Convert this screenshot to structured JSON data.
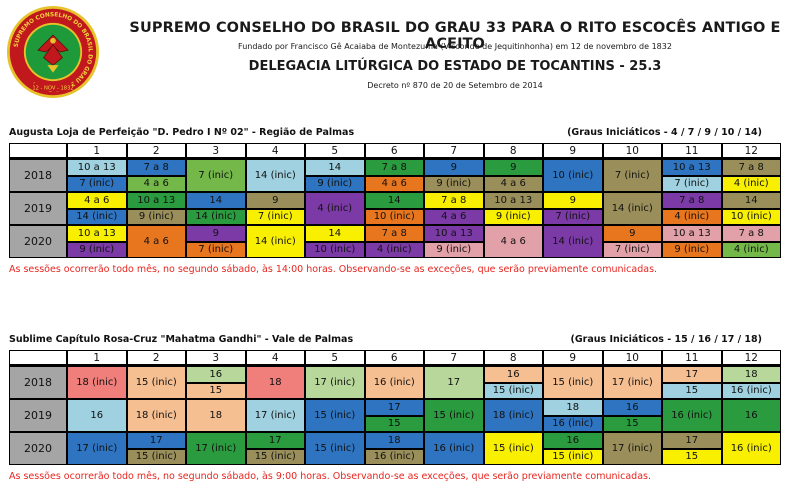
{
  "seal": {
    "ring_text": "SUPREMO CONSELHO DO BRASIL DO GRAU 33 P.R.E.A.A.",
    "date_text": "12 - NOV - 1832",
    "colors": {
      "outer": "#e8c22a",
      "ring": "#c0181c",
      "center": "#1f9a3a"
    }
  },
  "header": {
    "title": "SUPREMO CONSELHO DO BRASIL DO GRAU 33 PARA O RITO ESCOCÊS ANTIGO E ACEITO",
    "founded": "Fundado por Francisco Gê Acaiaba de Montezuma (Visconde de Jequitinhonha) em 12 de novembro de 1832",
    "delegacia": "DELEGACIA LITÚRGICA DO ESTADO DE TOCANTINS - 25.3",
    "decree": "Decreto nº 870 de 20 de Setembro de 2014"
  },
  "sections": [
    {
      "title": "Augusta Loja de Perfeição \"D. Pedro I Nº 02\" - Região de Palmas",
      "graus": "(Graus Iniciáticos - 4 / 7 / 9 / 10 / 14)",
      "note": "As sessões ocorrerão todo mês, no segundo sábado, às 14:00 horas. Observando-se as exceções, que serão previamente comunicadas.",
      "months": [
        "1",
        "2",
        "3",
        "4",
        "5",
        "6",
        "7",
        "8",
        "9",
        "10",
        "11",
        "12"
      ],
      "rows": [
        {
          "year": "2018",
          "cells": [
            [
              [
                "10 a 13",
                "#9fd1e0"
              ],
              [
                "7 (inic)",
                "#2e74c0"
              ]
            ],
            [
              [
                "7 a 8",
                "#2e74c0"
              ],
              [
                "4 a 6",
                "#74b84a"
              ]
            ],
            [
              [
                "7 (inic)",
                "#74b84a"
              ]
            ],
            [
              [
                "14 (inic)",
                "#9fd1e0"
              ]
            ],
            [
              [
                "14",
                "#9fd1e0"
              ],
              [
                "9 (inic)",
                "#2e74c0"
              ]
            ],
            [
              [
                "7 a 8",
                "#2a9b3e"
              ],
              [
                "4 a 6",
                "#e8761e"
              ]
            ],
            [
              [
                "9",
                "#2e74c0"
              ],
              [
                "9 (inic)",
                "#9a8f5a"
              ]
            ],
            [
              [
                "9",
                "#2a9b3e"
              ],
              [
                "4 a 6",
                "#9a8f5a"
              ]
            ],
            [
              [
                "10 (inic)",
                "#2e74c0"
              ]
            ],
            [
              [
                "7 (inic)",
                "#9a8f5a"
              ]
            ],
            [
              [
                "10 a 13",
                "#2e74c0"
              ],
              [
                "7 (inic)",
                "#9fd1e0"
              ]
            ],
            [
              [
                "7 a 8",
                "#9a8f5a"
              ],
              [
                "4 (inic)",
                "#f8f000"
              ]
            ]
          ]
        },
        {
          "year": "2019",
          "cells": [
            [
              [
                "4 a 6",
                "#f8f000"
              ],
              [
                "14 (inic)",
                "#2e74c0"
              ]
            ],
            [
              [
                "10 a 13",
                "#2a9b3e"
              ],
              [
                "9 (inic)",
                "#9a8f5a"
              ]
            ],
            [
              [
                "14",
                "#2e74c0"
              ],
              [
                "14 (inic)",
                "#2a9b3e"
              ]
            ],
            [
              [
                "9",
                "#9a8f5a"
              ],
              [
                "7 (inic)",
                "#f8f000"
              ]
            ],
            [
              [
                "4 (inic)",
                "#7b3aa6"
              ]
            ],
            [
              [
                "14",
                "#2a9b3e"
              ],
              [
                "10 (inic)",
                "#e8761e"
              ]
            ],
            [
              [
                "7 a 8",
                "#f8f000"
              ],
              [
                "4 a 6",
                "#7b3aa6"
              ]
            ],
            [
              [
                "10 a 13",
                "#9a8f5a"
              ],
              [
                "9 (inic)",
                "#f8f000"
              ]
            ],
            [
              [
                "9",
                "#f8f000"
              ],
              [
                "7 (inic)",
                "#7b3aa6"
              ]
            ],
            [
              [
                "14 (inic)",
                "#9a8f5a"
              ]
            ],
            [
              [
                "7 a 8",
                "#7b3aa6"
              ],
              [
                "4 (inic)",
                "#e8761e"
              ]
            ],
            [
              [
                "14",
                "#9a8f5a"
              ],
              [
                "10 (inic)",
                "#f8f000"
              ]
            ]
          ]
        },
        {
          "year": "2020",
          "cells": [
            [
              [
                "10 a 13",
                "#f8f000"
              ],
              [
                "9 (inic)",
                "#7b3aa6"
              ]
            ],
            [
              [
                "4 a 6",
                "#e8761e"
              ]
            ],
            [
              [
                "9",
                "#7b3aa6"
              ],
              [
                "7 (inic)",
                "#e8761e"
              ]
            ],
            [
              [
                "14 (inic)",
                "#f8f000"
              ]
            ],
            [
              [
                "14",
                "#f8f000"
              ],
              [
                "10 (inic)",
                "#7b3aa6"
              ]
            ],
            [
              [
                "7 a 8",
                "#e8761e"
              ],
              [
                "4 (inic)",
                "#7b3aa6"
              ]
            ],
            [
              [
                "10 a 13",
                "#7b3aa6"
              ],
              [
                "9 (inic)",
                "#e2a0a8"
              ]
            ],
            [
              [
                "4 a 6",
                "#e2a0a8"
              ]
            ],
            [
              [
                "14 (inic)",
                "#7b3aa6"
              ]
            ],
            [
              [
                "9",
                "#e8761e"
              ],
              [
                "7 (inic)",
                "#e2a0a8"
              ]
            ],
            [
              [
                "10 a 13",
                "#e2a0a8"
              ],
              [
                "9 (inic)",
                "#e8761e"
              ]
            ],
            [
              [
                "7 a 8",
                "#e2a0a8"
              ],
              [
                "4 (inic)",
                "#74b84a"
              ]
            ]
          ]
        }
      ]
    },
    {
      "title": "Sublime Capítulo Rosa-Cruz \"Mahatma Gandhi\" - Vale de Palmas",
      "graus": "(Graus Iniciáticos - 15 / 16 / 17 / 18)",
      "note": "As sessões ocorrerão todo mês, no segundo sábado, às 9:00 horas. Observando-se as exceções, que serão previamente comunicadas.",
      "months": [
        "1",
        "2",
        "3",
        "4",
        "5",
        "6",
        "7",
        "8",
        "9",
        "10",
        "11",
        "12"
      ],
      "rows": [
        {
          "year": "2018",
          "cells": [
            [
              [
                "18 (inic)",
                "#f07e7a"
              ]
            ],
            [
              [
                "15 (inic)",
                "#f6bf92"
              ]
            ],
            [
              [
                "16",
                "#b8d79b"
              ],
              [
                "15",
                "#f6bf92"
              ]
            ],
            [
              [
                "18",
                "#f07e7a"
              ]
            ],
            [
              [
                "17 (inic)",
                "#b8d79b"
              ]
            ],
            [
              [
                "16 (inic)",
                "#f6bf92"
              ]
            ],
            [
              [
                "17",
                "#b8d79b"
              ]
            ],
            [
              [
                "16",
                "#f6bf92"
              ],
              [
                "15 (inic)",
                "#9fd1e0"
              ]
            ],
            [
              [
                "15 (inic)",
                "#f6bf92"
              ]
            ],
            [
              [
                "17 (inic)",
                "#f6bf92"
              ]
            ],
            [
              [
                "17",
                "#f6bf92"
              ],
              [
                "15",
                "#9fd1e0"
              ]
            ],
            [
              [
                "18",
                "#b8d79b"
              ],
              [
                "16 (inic)",
                "#9fd1e0"
              ]
            ]
          ]
        },
        {
          "year": "2019",
          "cells": [
            [
              [
                "16",
                "#9fd1e0"
              ]
            ],
            [
              [
                "18 (inic)",
                "#f6bf92"
              ]
            ],
            [
              [
                "18",
                "#f6bf92"
              ]
            ],
            [
              [
                "17 (inic)",
                "#9fd1e0"
              ]
            ],
            [
              [
                "15 (inic)",
                "#2e74c0"
              ]
            ],
            [
              [
                "17",
                "#2e74c0"
              ],
              [
                "15",
                "#2a9b3e"
              ]
            ],
            [
              [
                "15 (inic)",
                "#2a9b3e"
              ]
            ],
            [
              [
                "18 (inic)",
                "#2e74c0"
              ]
            ],
            [
              [
                "18",
                "#9fd1e0"
              ],
              [
                "16 (inic)",
                "#2e74c0"
              ]
            ],
            [
              [
                "16",
                "#2e74c0"
              ],
              [
                "15",
                "#2a9b3e"
              ]
            ],
            [
              [
                "16 (inic)",
                "#2a9b3e"
              ]
            ],
            [
              [
                "16",
                "#2a9b3e"
              ]
            ]
          ]
        },
        {
          "year": "2020",
          "cells": [
            [
              [
                "17 (inic)",
                "#2e74c0"
              ]
            ],
            [
              [
                "17",
                "#2e74c0"
              ],
              [
                "15 (inic)",
                "#9a8f5a"
              ]
            ],
            [
              [
                "17 (inic)",
                "#2a9b3e"
              ]
            ],
            [
              [
                "17",
                "#2a9b3e"
              ],
              [
                "15 (inic)",
                "#9a8f5a"
              ]
            ],
            [
              [
                "15 (inic)",
                "#2e74c0"
              ]
            ],
            [
              [
                "18",
                "#2e74c0"
              ],
              [
                "16 (inic)",
                "#9a8f5a"
              ]
            ],
            [
              [
                "16 (inic)",
                "#2e74c0"
              ]
            ],
            [
              [
                "15 (inic)",
                "#f8f000"
              ]
            ],
            [
              [
                "16",
                "#2a9b3e"
              ],
              [
                "15 (inic)",
                "#f8f000"
              ]
            ],
            [
              [
                "17 (inic)",
                "#9a8f5a"
              ]
            ],
            [
              [
                "17",
                "#9a8f5a"
              ],
              [
                "15",
                "#f8f000"
              ]
            ],
            [
              [
                "16 (inic)",
                "#f8f000"
              ]
            ]
          ]
        }
      ]
    }
  ]
}
